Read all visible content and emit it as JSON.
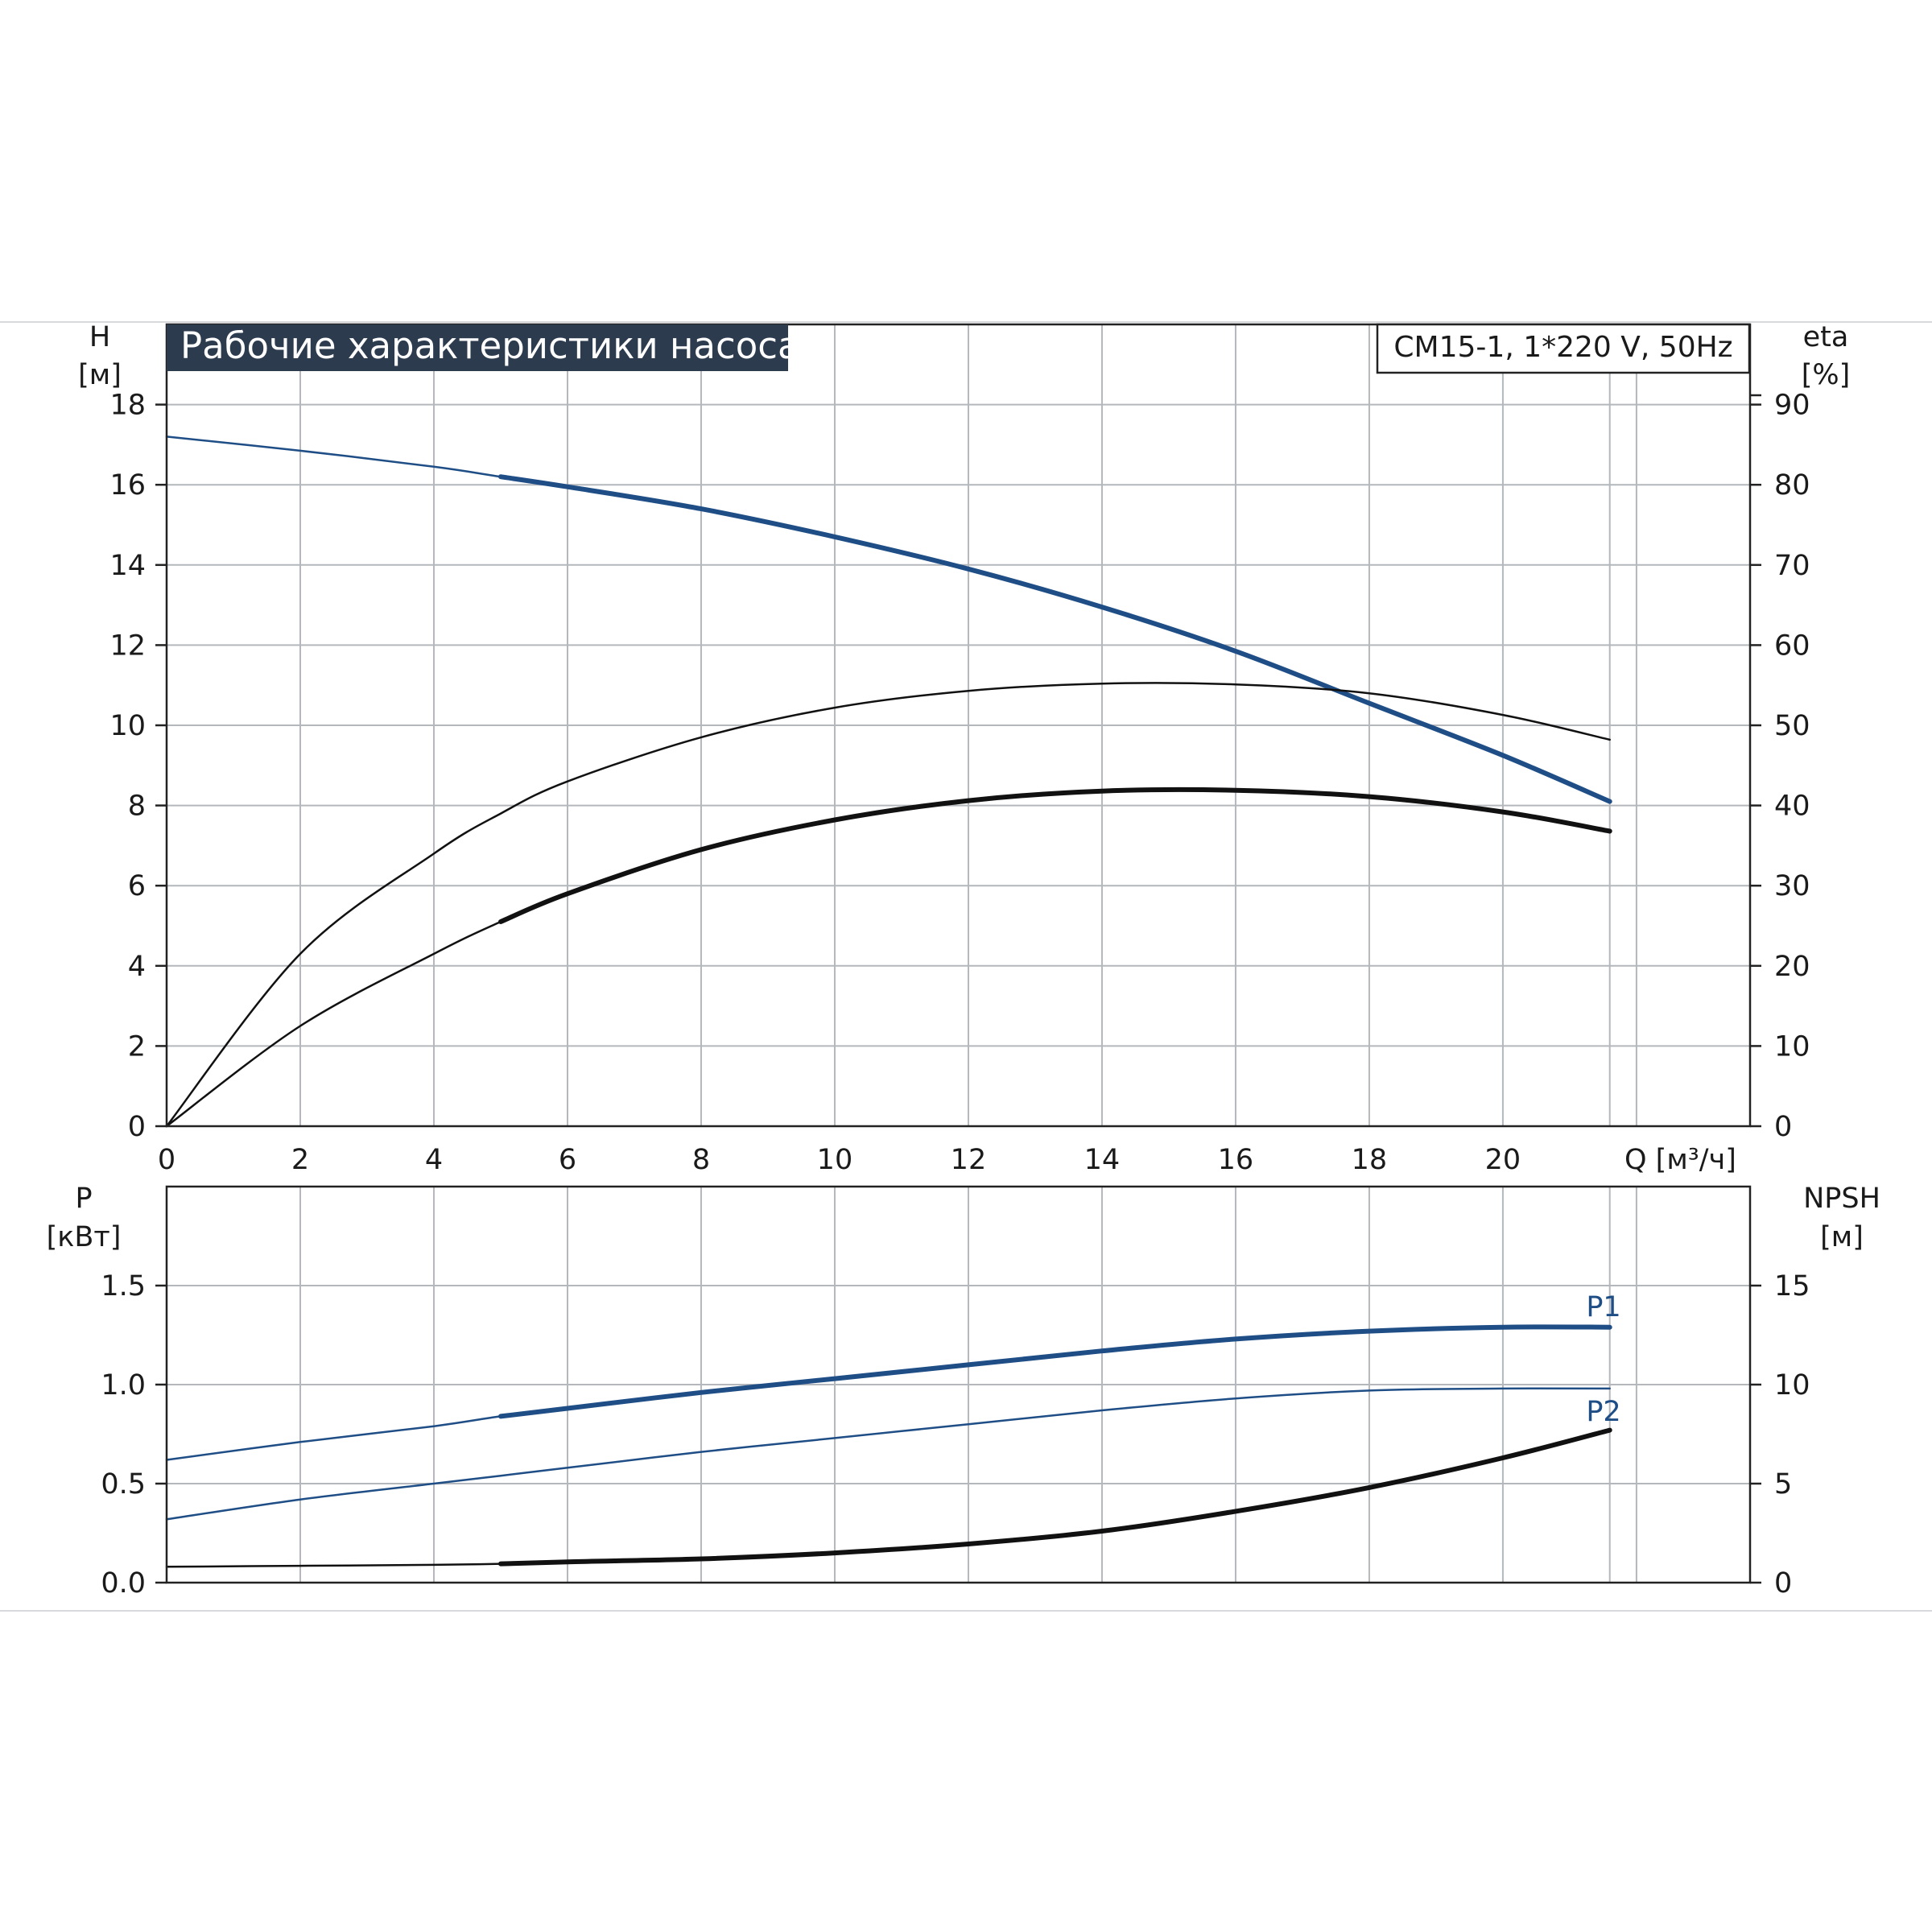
{
  "title": "Рабочие характеристики насоса",
  "model_label": "CM15-1, 1*220 V, 50Hz",
  "colors": {
    "blue": "#1f4e86",
    "black": "#111111",
    "title_bg": "#2d3b4f",
    "grid": "#b4b7bb"
  },
  "chart_data": [
    {
      "type": "line",
      "name": "head-efficiency",
      "left_axis": {
        "label_line1": "H",
        "label_line2": "[м]",
        "range": [
          0,
          20
        ],
        "ticks": [
          0,
          2,
          4,
          6,
          8,
          10,
          12,
          14,
          16,
          18
        ]
      },
      "right_axis": {
        "label_line1": "eta",
        "label_line2": "[%]",
        "range": [
          0,
          100
        ],
        "ticks": [
          0,
          10,
          20,
          30,
          40,
          50,
          60,
          70,
          80,
          90
        ]
      },
      "x_axis": {
        "label": "Q [м³/ч]",
        "range": [
          0,
          23.7
        ],
        "ticks": [
          0,
          2,
          4,
          6,
          8,
          10,
          12,
          14,
          16,
          18,
          20
        ]
      },
      "grid": true,
      "series": [
        {
          "id": "H",
          "axis": "left",
          "color": "blue",
          "x": [
            0,
            2,
            4,
            5,
            6,
            8,
            10,
            12,
            14,
            16,
            18,
            20,
            21.6
          ],
          "y": [
            17.2,
            16.85,
            16.45,
            16.2,
            15.95,
            15.4,
            14.7,
            13.9,
            12.95,
            11.85,
            10.55,
            9.25,
            8.1
          ],
          "op_from": 5
        },
        {
          "id": "eta",
          "axis": "right",
          "color": "black",
          "x": [
            0,
            2,
            4,
            5,
            6,
            8,
            10,
            12,
            14,
            16,
            18,
            20,
            21.6
          ],
          "y": [
            0,
            21.5,
            34,
            39,
            43,
            48.5,
            52.2,
            54.3,
            55.2,
            55.1,
            54,
            51.3,
            48.2
          ],
          "op_from": 22
        },
        {
          "id": "eta_total",
          "axis": "right",
          "color": "black",
          "x": [
            0,
            2,
            4,
            5,
            6,
            8,
            10,
            12,
            14,
            16,
            18,
            20,
            21.6
          ],
          "y": [
            0,
            12.5,
            21.5,
            25.5,
            29,
            34.5,
            38.2,
            40.6,
            41.8,
            41.9,
            41.1,
            39.2,
            36.8
          ],
          "op_from": 5
        }
      ]
    },
    {
      "type": "line",
      "name": "power-npsh",
      "left_axis": {
        "label_line1": "P",
        "label_line2": "[кВт]",
        "range": [
          0,
          2
        ],
        "ticks": [
          "0.0",
          "0.5",
          "1.0",
          "1.5"
        ]
      },
      "right_axis": {
        "label_line1": "NPSH",
        "label_line2": "[м]",
        "range": [
          0,
          20
        ],
        "ticks": [
          0,
          5,
          10,
          15
        ]
      },
      "x_axis": {
        "label": "Q [м³/ч]",
        "range": [
          0,
          23.7
        ]
      },
      "grid": true,
      "series": [
        {
          "id": "P1",
          "name": "P1",
          "axis": "left",
          "color": "blue",
          "x": [
            0,
            2,
            4,
            5,
            6,
            8,
            10,
            12,
            14,
            16,
            18,
            20,
            21.6
          ],
          "y": [
            0.62,
            0.71,
            0.79,
            0.84,
            0.88,
            0.96,
            1.03,
            1.1,
            1.17,
            1.23,
            1.27,
            1.29,
            1.29
          ],
          "op_from": 5
        },
        {
          "id": "P2",
          "name": "P2",
          "axis": "left",
          "color": "blue",
          "x": [
            0,
            2,
            4,
            5,
            6,
            8,
            10,
            12,
            14,
            16,
            18,
            20,
            21.6
          ],
          "y": [
            0.32,
            0.42,
            0.5,
            0.54,
            0.58,
            0.66,
            0.73,
            0.8,
            0.87,
            0.93,
            0.97,
            0.98,
            0.98
          ],
          "op_from": 22
        },
        {
          "id": "NPSH",
          "axis": "right",
          "color": "black",
          "x": [
            0,
            2,
            4,
            5,
            6,
            8,
            10,
            12,
            14,
            16,
            18,
            20,
            21.6
          ],
          "y": [
            0.8,
            0.85,
            0.9,
            0.95,
            1.05,
            1.2,
            1.5,
            1.95,
            2.6,
            3.6,
            4.8,
            6.3,
            7.7
          ],
          "op_from": 5
        }
      ]
    }
  ]
}
